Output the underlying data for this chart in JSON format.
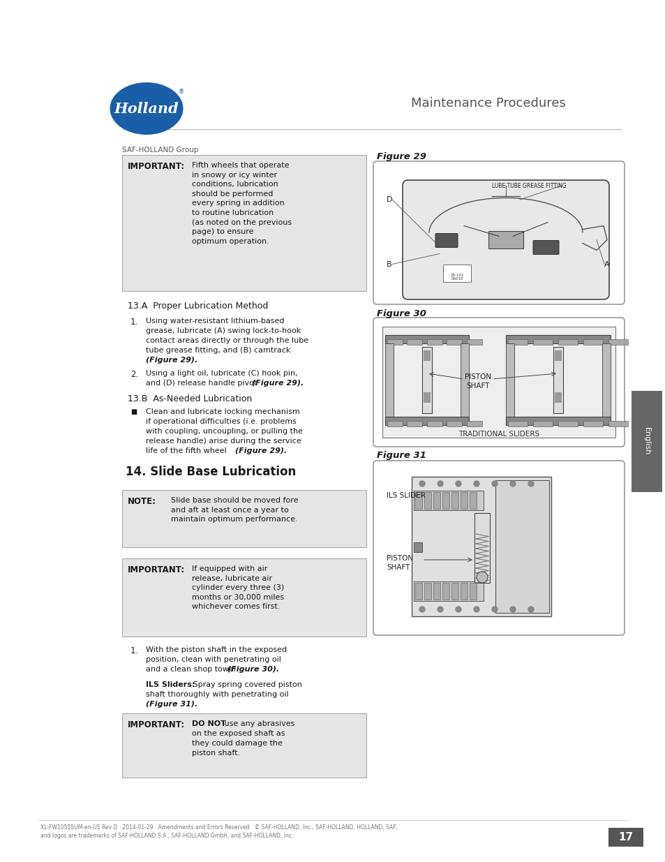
{
  "page_bg": "#ffffff",
  "header_title": "Maintenance Procedures",
  "logo_oval_color": "#1a5ea8",
  "logo_text": "Holland",
  "saf_holland_text": "SAF-HOLLAND Group",
  "section_header": "14. Slide Base Lubrication",
  "important_box1_label": "IMPORTANT:",
  "important_box1_text": "Fifth wheels that operate\nin snowy or icy winter\nconditions, lubrication\nshould be performed\nevery spring in addition\nto routine lubrication\n(as noted on the previous\npage) to ensure\noptimum operation.",
  "subsection_13a": "13.A  Proper Lubrication Method",
  "subsection_13b": "13.B  As-Needed Lubrication",
  "note_label": "NOTE:",
  "note_text": "Slide base should be moved fore\nand aft at least once a year to\nmaintain optimum performance.",
  "important_box2_label": "IMPORTANT:",
  "important_box2_text": "If equipped with air\nrelease, lubricate air\ncylinder every three (3)\nmonths or 30,000 miles\nwhichever comes first.",
  "important_box3_label": "IMPORTANT:",
  "important_box3_text_bold": "DO NOT",
  "important_box3_text": " use any abrasives\non the exposed shaft as\nthey could damage the\npiston shaft.",
  "fig29_label": "Figure 29",
  "fig30_label": "Figure 30",
  "fig31_label": "Figure 31",
  "box_bg_color": "#e5e5e5",
  "english_tab_text": "English",
  "footer_text": "XL-FW10555UM-en-US Rev D   2014-01-29   Amendments and Errors Reserved   © SAF-HOLLAND, Inc., SAF-HOLLAND, HOLLAND, SAF,\nand logos are trademarks of SAF-HOLLAND S.A., SAF-HOLLAND GmbH, and SAF-HOLLAND, Inc.",
  "page_number": "17",
  "dark_text": "#1a1a1a",
  "gray_text": "#555555",
  "fig_bg": "#f8f8f8",
  "fig_border": "#999999",
  "line_color": "#dddddd"
}
